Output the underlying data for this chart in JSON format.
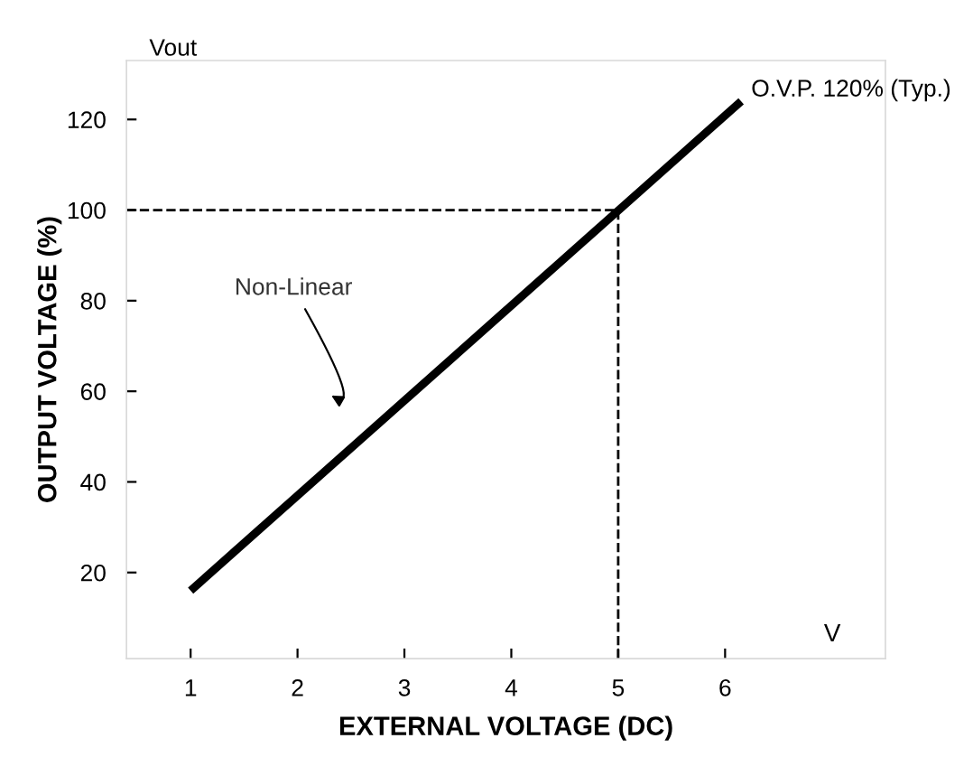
{
  "chart_data": {
    "type": "line",
    "xlabel": "EXTERNAL VOLTAGE (DC)",
    "ylabel": "OUTPUT VOLTAGE (%)",
    "x": [
      1,
      6.15
    ],
    "series": [
      {
        "color": "#000000",
        "values": [
          16,
          124
        ]
      }
    ],
    "xlim": [
      0.4,
      7.5
    ],
    "ylim": [
      1,
      133
    ],
    "xticks": [
      1,
      2,
      3,
      4,
      5,
      6
    ],
    "yticks": [
      20,
      40,
      60,
      80,
      100,
      120
    ],
    "ref_lines": [
      {
        "axis": "y",
        "value": 100,
        "color": "#000000",
        "line_style": "dashed"
      },
      {
        "axis": "x",
        "value": 5,
        "color": "#000000",
        "line_style": "dashed"
      }
    ],
    "annotations": [
      "Vout",
      "V",
      {
        "text": "O.V.P. 120% (Typ.)",
        "x": 6.15,
        "y": 124
      },
      "Non-Linear"
    ],
    "grid": false,
    "legend": false,
    "marker": "none",
    "line_style": "solid"
  }
}
